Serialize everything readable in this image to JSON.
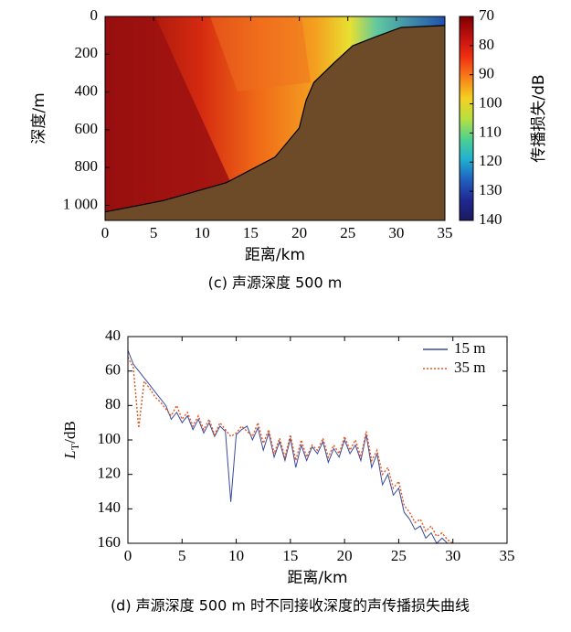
{
  "chart_data": [
    {
      "type": "heatmap",
      "x_label": "距离/km",
      "y_label": "深度/m",
      "caption": "(c)  声源深度 500 m",
      "xlim": [
        0,
        35
      ],
      "xticks": [
        0,
        5,
        10,
        15,
        20,
        25,
        30,
        35
      ],
      "ylim": [
        0,
        1080
      ],
      "y_inverted": true,
      "yticks": [
        0,
        200,
        400,
        600,
        800,
        {
          "value": 1000,
          "label": "1 000"
        }
      ],
      "colorbar": {
        "label": "传播损失/dB",
        "lim": [
          70,
          140
        ],
        "ticks": [
          70,
          80,
          90,
          100,
          110,
          120,
          130,
          140
        ],
        "colors": [
          "#7f0000",
          "#c01010",
          "#f03010",
          "#f8801a",
          "#f4d020",
          "#b8e040",
          "#50d090",
          "#20b0d0",
          "#2060c0",
          "#202890",
          "#1a1a60"
        ]
      },
      "seabed_range": [
        0,
        6,
        12.5,
        17.5,
        20,
        20.7,
        21.5,
        23.5,
        25.5,
        28,
        30.5,
        35
      ],
      "seabed_depth": [
        1035,
        975,
        880,
        745,
        590,
        445,
        350,
        250,
        155,
        105,
        58,
        48
      ],
      "seabed_color": "#6e4b28"
    },
    {
      "type": "line",
      "x_label": "距离/km",
      "y_label": "L",
      "y_label_sub": "T",
      "y_label_unit": "/dB",
      "caption": "(d)  声源深度 500 m 时不同接收深度的声传播损失曲线",
      "xlim": [
        0,
        35
      ],
      "xticks": [
        0,
        5,
        10,
        15,
        20,
        25,
        30,
        35
      ],
      "ylim": [
        40,
        160
      ],
      "y_inverted": true,
      "yticks": [
        40,
        60,
        80,
        100,
        120,
        140,
        160
      ],
      "x": [
        0,
        0.5,
        1,
        1.5,
        2,
        2.5,
        3,
        3.5,
        4,
        4.5,
        5,
        5.5,
        6,
        6.5,
        7,
        7.5,
        8,
        8.5,
        9,
        9.5,
        10,
        10.5,
        11,
        11.5,
        12,
        12.5,
        13,
        13.5,
        14,
        14.5,
        15,
        15.5,
        16,
        16.5,
        17,
        17.5,
        18,
        18.5,
        19,
        19.5,
        20,
        20.5,
        21,
        21.5,
        22,
        22.5,
        23,
        23.5,
        24,
        24.5,
        25,
        25.5,
        26,
        26.5,
        27,
        27.5,
        28,
        28.5,
        29,
        29.5,
        30
      ],
      "series": [
        {
          "name": "15 m",
          "color": "#3a4a9c",
          "dashed": false,
          "values": [
            48,
            56,
            60,
            64,
            68,
            72,
            76,
            80,
            88,
            84,
            90,
            86,
            94,
            88,
            96,
            90,
            98,
            92,
            95,
            136,
            97,
            94,
            92,
            100,
            93,
            106,
            96,
            110,
            101,
            112,
            99,
            116,
            103,
            112,
            104,
            108,
            101,
            113,
            105,
            110,
            100,
            108,
            103,
            112,
            97,
            116,
            108,
            126,
            120,
            132,
            128,
            142,
            146,
            152,
            150,
            157,
            154,
            160,
            157,
            160,
            160
          ]
        },
        {
          "name": "35 m",
          "color": "#e8541c",
          "dashed": true,
          "values": [
            52,
            58,
            93,
            66,
            70,
            75,
            78,
            82,
            86,
            80,
            88,
            84,
            92,
            86,
            94,
            88,
            97,
            90,
            94,
            98,
            96,
            92,
            95,
            98,
            90,
            102,
            94,
            108,
            99,
            110,
            97,
            112,
            100,
            110,
            103,
            106,
            99,
            110,
            103,
            108,
            98,
            106,
            100,
            110,
            95,
            112,
            106,
            120,
            116,
            128,
            124,
            138,
            142,
            148,
            146,
            153,
            150,
            156,
            154,
            158,
            160
          ]
        }
      ]
    }
  ]
}
